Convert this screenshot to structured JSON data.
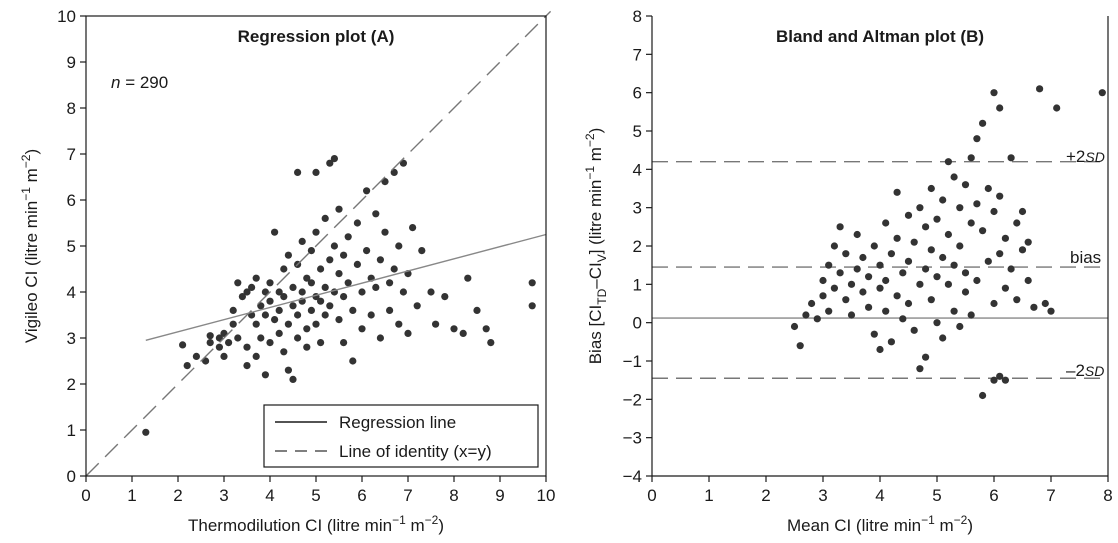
{
  "chart_data": [
    {
      "type": "scatter",
      "title": "Regression plot (A)",
      "xlabel": {
        "main": "Thermodilution CI (litre min",
        "sup1": "−1",
        "mid": " m",
        "sup2": "−2",
        "end": ")"
      },
      "ylabel": {
        "main": "Vigileo CI (litre min",
        "sup1": "−1",
        "mid": " m",
        "sup2": "−2",
        "end": ")"
      },
      "xlim": [
        0,
        10
      ],
      "ylim": [
        0,
        10
      ],
      "xticks": [
        "0",
        "1",
        "2",
        "3",
        "4",
        "5",
        "6",
        "7",
        "8",
        "9",
        "10"
      ],
      "yticks": [
        "0",
        "1",
        "2",
        "3",
        "4",
        "5",
        "6",
        "7",
        "8",
        "9",
        "10"
      ],
      "annotation": {
        "italic": "n",
        "rest": " = 290"
      },
      "legend": {
        "position": "bottom-right",
        "entries": [
          {
            "label": "Regression line",
            "style": "solid"
          },
          {
            "label": "Line of identity (x=y)",
            "style": "dashed"
          }
        ]
      },
      "regression_line": {
        "x": [
          1.3,
          10.0
        ],
        "y": [
          2.95,
          5.25
        ]
      },
      "identity_line": {
        "x": [
          0,
          10.1
        ],
        "y": [
          0,
          10.1
        ]
      },
      "points": [
        [
          1.3,
          0.95
        ],
        [
          2.1,
          2.85
        ],
        [
          2.2,
          2.4
        ],
        [
          2.4,
          2.6
        ],
        [
          2.6,
          2.5
        ],
        [
          2.7,
          2.9
        ],
        [
          2.7,
          3.05
        ],
        [
          2.9,
          2.8
        ],
        [
          2.9,
          3.0
        ],
        [
          3.0,
          2.6
        ],
        [
          3.0,
          3.1
        ],
        [
          3.1,
          2.9
        ],
        [
          3.2,
          3.3
        ],
        [
          3.2,
          3.6
        ],
        [
          3.3,
          4.2
        ],
        [
          3.3,
          3.0
        ],
        [
          3.4,
          3.9
        ],
        [
          3.5,
          4.0
        ],
        [
          3.5,
          2.4
        ],
        [
          3.5,
          2.8
        ],
        [
          3.6,
          3.5
        ],
        [
          3.6,
          4.1
        ],
        [
          3.7,
          2.6
        ],
        [
          3.7,
          3.3
        ],
        [
          3.7,
          4.3
        ],
        [
          3.8,
          3.7
        ],
        [
          3.8,
          3.0
        ],
        [
          3.9,
          4.0
        ],
        [
          3.9,
          2.2
        ],
        [
          3.9,
          3.5
        ],
        [
          4.0,
          3.8
        ],
        [
          4.0,
          4.2
        ],
        [
          4.0,
          2.9
        ],
        [
          4.1,
          5.3
        ],
        [
          4.1,
          3.4
        ],
        [
          4.2,
          3.6
        ],
        [
          4.2,
          4.0
        ],
        [
          4.2,
          3.1
        ],
        [
          4.3,
          4.5
        ],
        [
          4.3,
          2.7
        ],
        [
          4.3,
          3.9
        ],
        [
          4.4,
          3.3
        ],
        [
          4.4,
          4.8
        ],
        [
          4.4,
          2.3
        ],
        [
          4.5,
          3.7
        ],
        [
          4.5,
          4.1
        ],
        [
          4.5,
          2.1
        ],
        [
          4.6,
          3.5
        ],
        [
          4.6,
          4.6
        ],
        [
          4.6,
          3.0
        ],
        [
          4.6,
          6.6
        ],
        [
          4.7,
          4.0
        ],
        [
          4.7,
          5.1
        ],
        [
          4.7,
          3.8
        ],
        [
          4.8,
          4.3
        ],
        [
          4.8,
          3.2
        ],
        [
          4.8,
          2.8
        ],
        [
          4.9,
          4.9
        ],
        [
          4.9,
          3.6
        ],
        [
          4.9,
          4.2
        ],
        [
          5.0,
          3.9
        ],
        [
          5.0,
          5.3
        ],
        [
          5.0,
          6.6
        ],
        [
          5.0,
          3.3
        ],
        [
          5.1,
          4.5
        ],
        [
          5.1,
          3.8
        ],
        [
          5.1,
          2.9
        ],
        [
          5.2,
          5.6
        ],
        [
          5.2,
          4.1
        ],
        [
          5.2,
          3.5
        ],
        [
          5.3,
          6.8
        ],
        [
          5.3,
          4.7
        ],
        [
          5.3,
          3.7
        ],
        [
          5.4,
          6.9
        ],
        [
          5.4,
          5.0
        ],
        [
          5.4,
          4.0
        ],
        [
          5.5,
          4.4
        ],
        [
          5.5,
          3.4
        ],
        [
          5.5,
          5.8
        ],
        [
          5.6,
          4.8
        ],
        [
          5.6,
          3.9
        ],
        [
          5.6,
          2.9
        ],
        [
          5.7,
          5.2
        ],
        [
          5.7,
          4.2
        ],
        [
          5.8,
          3.6
        ],
        [
          5.8,
          2.5
        ],
        [
          5.9,
          4.6
        ],
        [
          5.9,
          5.5
        ],
        [
          6.0,
          4.0
        ],
        [
          6.0,
          3.2
        ],
        [
          6.1,
          4.9
        ],
        [
          6.1,
          6.2
        ],
        [
          6.2,
          4.3
        ],
        [
          6.2,
          3.5
        ],
        [
          6.3,
          5.7
        ],
        [
          6.3,
          4.1
        ],
        [
          6.4,
          4.7
        ],
        [
          6.4,
          3.0
        ],
        [
          6.5,
          5.3
        ],
        [
          6.5,
          6.4
        ],
        [
          6.6,
          4.2
        ],
        [
          6.6,
          3.6
        ],
        [
          6.7,
          6.6
        ],
        [
          6.7,
          4.5
        ],
        [
          6.8,
          5.0
        ],
        [
          6.8,
          3.3
        ],
        [
          6.9,
          6.8
        ],
        [
          6.9,
          4.0
        ],
        [
          7.0,
          4.4
        ],
        [
          7.0,
          3.1
        ],
        [
          7.1,
          5.4
        ],
        [
          7.2,
          3.7
        ],
        [
          7.3,
          4.9
        ],
        [
          7.5,
          4.0
        ],
        [
          7.6,
          3.3
        ],
        [
          7.8,
          3.9
        ],
        [
          8.0,
          3.2
        ],
        [
          8.2,
          3.1
        ],
        [
          8.3,
          4.3
        ],
        [
          8.5,
          3.6
        ],
        [
          8.7,
          3.2
        ],
        [
          8.8,
          2.9
        ],
        [
          9.7,
          4.2
        ],
        [
          9.7,
          3.7
        ]
      ]
    },
    {
      "type": "scatter",
      "title": "Bland and Altman plot (B)",
      "xlabel": {
        "main": "Mean CI (litre min",
        "sup1": "−1",
        "mid": " m",
        "sup2": "−2",
        "end": ")"
      },
      "ylabel": {
        "p1": "Bias [CI",
        "s1": "TD",
        "p2": "–CI",
        "s2": "V",
        "p3": "] (litre min",
        "sup1": "−1",
        "p4": " m",
        "sup2": "−2",
        "p5": ")"
      },
      "xlim": [
        0,
        8
      ],
      "ylim": [
        -4,
        8
      ],
      "xticks": [
        "0",
        "1",
        "2",
        "3",
        "4",
        "5",
        "6",
        "7",
        "8"
      ],
      "yticks": [
        "−4",
        "−3",
        "−2",
        "−1",
        "0",
        "1",
        "2",
        "3",
        "4",
        "5",
        "6",
        "7",
        "8"
      ],
      "reference_lines": [
        {
          "label_prefix": "+2",
          "label_italic": "SD",
          "y": 4.2,
          "style": "dashed"
        },
        {
          "label_prefix": "",
          "label_italic": "",
          "label": "bias",
          "y": 1.45,
          "style": "dashed"
        },
        {
          "label_prefix": "",
          "label_italic": "",
          "label": "",
          "y": 0.12,
          "style": "solid"
        },
        {
          "label_prefix": "–2",
          "label_italic": "SD",
          "y": -1.45,
          "style": "dashed"
        }
      ],
      "points": [
        [
          2.5,
          -0.1
        ],
        [
          2.6,
          -0.6
        ],
        [
          2.7,
          0.2
        ],
        [
          2.8,
          0.5
        ],
        [
          2.9,
          0.1
        ],
        [
          3.0,
          0.7
        ],
        [
          3.0,
          1.1
        ],
        [
          3.1,
          0.3
        ],
        [
          3.1,
          1.5
        ],
        [
          3.2,
          2.0
        ],
        [
          3.2,
          0.9
        ],
        [
          3.3,
          2.5
        ],
        [
          3.3,
          1.3
        ],
        [
          3.4,
          0.6
        ],
        [
          3.4,
          1.8
        ],
        [
          3.5,
          1.0
        ],
        [
          3.5,
          0.2
        ],
        [
          3.6,
          1.4
        ],
        [
          3.6,
          2.3
        ],
        [
          3.7,
          0.8
        ],
        [
          3.7,
          1.7
        ],
        [
          3.8,
          0.4
        ],
        [
          3.8,
          1.2
        ],
        [
          3.9,
          2.0
        ],
        [
          3.9,
          -0.3
        ],
        [
          4.0,
          1.5
        ],
        [
          4.0,
          0.9
        ],
        [
          4.0,
          -0.7
        ],
        [
          4.1,
          2.6
        ],
        [
          4.1,
          1.1
        ],
        [
          4.1,
          0.3
        ],
        [
          4.2,
          1.8
        ],
        [
          4.2,
          -0.5
        ],
        [
          4.3,
          2.2
        ],
        [
          4.3,
          0.7
        ],
        [
          4.3,
          3.4
        ],
        [
          4.4,
          1.3
        ],
        [
          4.4,
          0.1
        ],
        [
          4.5,
          2.8
        ],
        [
          4.5,
          1.6
        ],
        [
          4.5,
          0.5
        ],
        [
          4.6,
          2.1
        ],
        [
          4.6,
          -0.2
        ],
        [
          4.7,
          3.0
        ],
        [
          4.7,
          1.0
        ],
        [
          4.7,
          -1.2
        ],
        [
          4.8,
          2.5
        ],
        [
          4.8,
          1.4
        ],
        [
          4.8,
          -0.9
        ],
        [
          4.9,
          3.5
        ],
        [
          4.9,
          1.9
        ],
        [
          4.9,
          0.6
        ],
        [
          5.0,
          2.7
        ],
        [
          5.0,
          1.2
        ],
        [
          5.0,
          0.0
        ],
        [
          5.1,
          3.2
        ],
        [
          5.1,
          1.7
        ],
        [
          5.1,
          -0.4
        ],
        [
          5.2,
          4.2
        ],
        [
          5.2,
          2.3
        ],
        [
          5.2,
          1.0
        ],
        [
          5.3,
          3.8
        ],
        [
          5.3,
          1.5
        ],
        [
          5.3,
          0.3
        ],
        [
          5.4,
          3.0
        ],
        [
          5.4,
          2.0
        ],
        [
          5.4,
          -0.1
        ],
        [
          5.5,
          3.6
        ],
        [
          5.5,
          1.3
        ],
        [
          5.5,
          0.8
        ],
        [
          5.6,
          2.6
        ],
        [
          5.6,
          4.3
        ],
        [
          5.6,
          0.2
        ],
        [
          5.7,
          4.8
        ],
        [
          5.7,
          3.1
        ],
        [
          5.7,
          1.1
        ],
        [
          5.8,
          5.2
        ],
        [
          5.8,
          2.4
        ],
        [
          5.8,
          -1.9
        ],
        [
          5.9,
          3.5
        ],
        [
          5.9,
          1.6
        ],
        [
          6.0,
          6.0
        ],
        [
          6.0,
          2.9
        ],
        [
          6.0,
          0.5
        ],
        [
          6.0,
          -1.5
        ],
        [
          6.1,
          5.6
        ],
        [
          6.1,
          3.3
        ],
        [
          6.1,
          1.8
        ],
        [
          6.1,
          -1.4
        ],
        [
          6.2,
          2.2
        ],
        [
          6.2,
          0.9
        ],
        [
          6.2,
          -1.5
        ],
        [
          6.3,
          4.3
        ],
        [
          6.3,
          1.4
        ],
        [
          6.4,
          2.6
        ],
        [
          6.4,
          0.6
        ],
        [
          6.5,
          2.9
        ],
        [
          6.5,
          1.9
        ],
        [
          6.6,
          2.1
        ],
        [
          6.6,
          1.1
        ],
        [
          6.7,
          0.4
        ],
        [
          6.8,
          6.1
        ],
        [
          6.9,
          0.5
        ],
        [
          7.0,
          0.3
        ],
        [
          7.1,
          5.6
        ],
        [
          7.9,
          6.0
        ]
      ]
    }
  ]
}
